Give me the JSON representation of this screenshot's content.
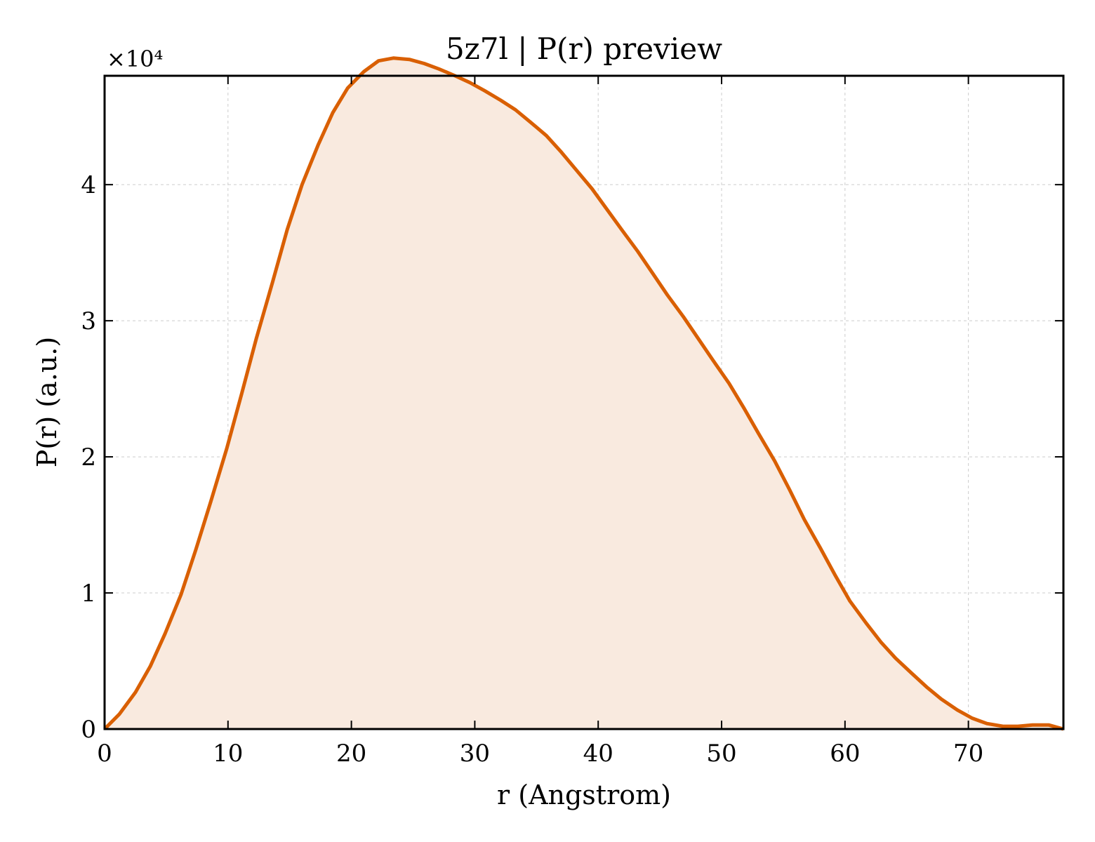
{
  "chart_data": {
    "type": "area",
    "title": "5z7l | P(r) preview",
    "xlabel": "r (Angstrom)",
    "ylabel": "P(r) (a.u.)",
    "y_multiplier": "×10⁴",
    "xlim": [
      0,
      77.7
    ],
    "ylim": [
      0,
      4.8
    ],
    "x_ticks": [
      0,
      10,
      20,
      30,
      40,
      50,
      60,
      70
    ],
    "y_ticks": [
      0,
      1,
      2,
      3,
      4
    ],
    "grid": true,
    "colors": {
      "line": "#d95f02",
      "fill": "#f9eadf"
    },
    "series": [
      {
        "x": [
          0,
          1.2,
          2.5,
          3.7,
          4.9,
          6.2,
          7.4,
          8.6,
          9.9,
          11.1,
          12.3,
          13.6,
          14.8,
          16.0,
          17.3,
          18.5,
          19.7,
          21.0,
          22.2,
          23.4,
          24.7,
          25.9,
          27.1,
          28.4,
          29.6,
          30.8,
          32.1,
          33.3,
          34.5,
          35.8,
          37.0,
          38.2,
          39.5,
          40.7,
          41.9,
          43.2,
          44.4,
          45.6,
          46.9,
          48.1,
          49.3,
          50.6,
          51.8,
          53.0,
          54.3,
          55.5,
          56.7,
          58.0,
          59.2,
          60.4,
          61.7,
          62.9,
          64.1,
          65.4,
          66.6,
          67.8,
          69.1,
          70.3,
          71.5,
          72.8,
          74.0,
          75.2,
          76.5,
          77.7
        ],
        "y": [
          0,
          0.11,
          0.27,
          0.46,
          0.7,
          0.99,
          1.32,
          1.67,
          2.06,
          2.46,
          2.87,
          3.28,
          3.67,
          4.0,
          4.29,
          4.53,
          4.71,
          4.83,
          4.91,
          4.93,
          4.92,
          4.89,
          4.85,
          4.8,
          4.75,
          4.69,
          4.62,
          4.55,
          4.46,
          4.36,
          4.24,
          4.11,
          3.97,
          3.82,
          3.67,
          3.51,
          3.35,
          3.19,
          3.03,
          2.87,
          2.71,
          2.54,
          2.36,
          2.17,
          1.97,
          1.76,
          1.54,
          1.33,
          1.13,
          0.94,
          0.78,
          0.64,
          0.52,
          0.41,
          0.31,
          0.22,
          0.14,
          0.08,
          0.04,
          0.02,
          0.02,
          0.03,
          0.03,
          0.0
        ]
      }
    ]
  }
}
